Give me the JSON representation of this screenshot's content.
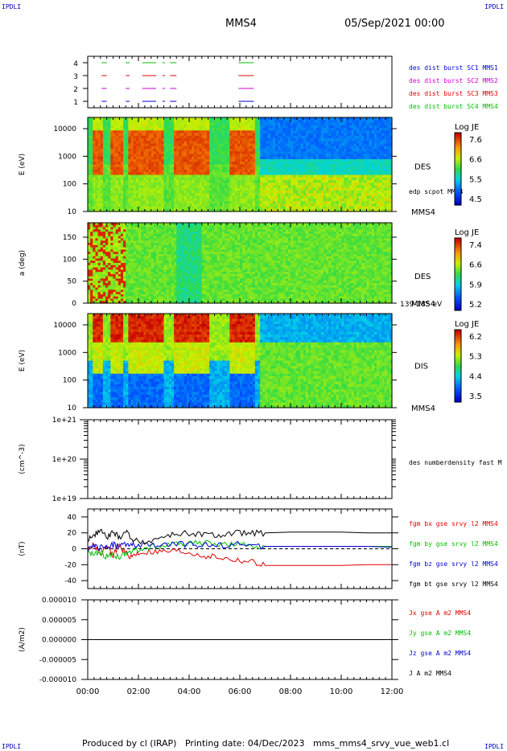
{
  "header": {
    "corner_tl": "IPDLI",
    "corner_tr": "IPDLI",
    "corner_bl": "IPDLI",
    "corner_br": "IPDLI",
    "title": "MMS4",
    "date": "05/Sep/2021 00:00"
  },
  "footer": {
    "text": "Produced by cl (IRAP)   Printing date: 04/Dec/2023   mms_mms4_srvy_vue_web1.cl"
  },
  "colors": {
    "mms1": "#0000d0",
    "mms2": "#d000d0",
    "mms3": "#e00000",
    "mms4": "#00c000",
    "bt": "#000000"
  },
  "chart_data": [
    {
      "type": "scatter",
      "name": "burst-availability",
      "yticks": [
        "4",
        "3",
        "2",
        "1"
      ],
      "legend": [
        {
          "label": "des dist burst SC1 MMS1",
          "color": "#0000d0"
        },
        {
          "label": "des dist burst SC2 MMS2",
          "color": "#d000d0"
        },
        {
          "label": "des dist burst SC3 MMS3",
          "color": "#e00000"
        },
        {
          "label": "des dist burst SC4 MMS4",
          "color": "#00c000"
        }
      ],
      "intervals_hours": [
        [
          0.55,
          0.75
        ],
        [
          1.5,
          1.65
        ],
        [
          2.15,
          2.7
        ],
        [
          2.95,
          3.05
        ],
        [
          3.25,
          3.5
        ],
        [
          5.95,
          6.55
        ]
      ]
    },
    {
      "type": "heatmap",
      "name": "des-energy-spectrogram",
      "ylabel": "E (eV)",
      "yticks": [
        "10000",
        "1000",
        "100",
        "10"
      ],
      "label_right": "DES",
      "annotation": "edp scpot MMS4",
      "unit_right": "MMS4",
      "colorbar": {
        "title": "Log JE",
        "ticks": [
          "7.6",
          "6.6",
          "5.5",
          "4.5"
        ]
      }
    },
    {
      "type": "heatmap",
      "name": "des-pitch-angle",
      "ylabel": "a (deg)",
      "yticks": [
        "150",
        "100",
        "50",
        "0"
      ],
      "label_right": "DES",
      "unit_right": "MMS4",
      "energy_range": "139-185 eV",
      "colorbar": {
        "title": "Log JE",
        "ticks": [
          "7.4",
          "6.6",
          "5.9",
          "5.2"
        ]
      }
    },
    {
      "type": "heatmap",
      "name": "dis-energy-spectrogram",
      "ylabel": "E (eV)",
      "yticks": [
        "10000",
        "1000",
        "100",
        "10"
      ],
      "label_right": "DIS",
      "unit_right": "MMS4",
      "colorbar": {
        "title": "Log JE",
        "ticks": [
          "6.2",
          "5.3",
          "4.4",
          "3.5"
        ]
      }
    },
    {
      "type": "line",
      "name": "number-density",
      "ylabel": "(cm^-3)",
      "yticks": [
        "1e+21",
        "1e+20",
        "1e+19"
      ],
      "series": [
        {
          "name": "des numberdensity fast M",
          "x": [],
          "y": []
        }
      ]
    },
    {
      "type": "line",
      "name": "magnetic-field",
      "ylabel": "(nT)",
      "yticks": [
        "40",
        "20",
        "0",
        "-20",
        "-40"
      ],
      "ylim": [
        -50,
        50
      ],
      "x": [
        0,
        0.25,
        0.5,
        0.75,
        1.0,
        1.25,
        1.5,
        1.75,
        2.0,
        2.5,
        3.0,
        3.5,
        4.0,
        4.5,
        5.0,
        5.5,
        6.0,
        6.5,
        7.0,
        8.0,
        9.0,
        10.0,
        11.0,
        12.0
      ],
      "series": [
        {
          "name": "fgm bx gse srvy l2 MMS4",
          "color": "#e00000",
          "y": [
            0,
            5,
            -5,
            2,
            -8,
            4,
            -6,
            -10,
            -5,
            -4,
            -4,
            -3,
            -5,
            -8,
            -10,
            -13,
            -15,
            -17,
            -21,
            -21,
            -21,
            -21,
            -20,
            -20
          ]
        },
        {
          "name": "fgm by gse srvy l2 MMS4",
          "color": "#00c000",
          "y": [
            -3,
            -8,
            -5,
            -10,
            -8,
            -10,
            -6,
            -4,
            0,
            2,
            4,
            6,
            8,
            7,
            6,
            5,
            4,
            4,
            3,
            3,
            3,
            3,
            3,
            3
          ]
        },
        {
          "name": "fgm bz gse srvy l2 MMS4",
          "color": "#0000d0",
          "y": [
            0,
            2,
            1,
            3,
            5,
            3,
            6,
            4,
            3,
            5,
            4,
            6,
            5,
            5,
            4,
            5,
            6,
            4,
            3,
            3,
            3,
            3,
            3,
            2
          ]
        },
        {
          "name": "fgm bt gse srvy l2 MMS4",
          "color": "#000000",
          "y": [
            12,
            18,
            22,
            15,
            20,
            14,
            22,
            12,
            8,
            10,
            15,
            18,
            20,
            18,
            16,
            18,
            20,
            19,
            20,
            21,
            21,
            21,
            20,
            20
          ]
        }
      ]
    },
    {
      "type": "line",
      "name": "current-density",
      "ylabel": "(A/m2)",
      "yticks": [
        "0.000010",
        "0.000005",
        "0.000000",
        "-0.000005",
        "-0.000010"
      ],
      "ylim": [
        -1e-05,
        1e-05
      ],
      "series": [
        {
          "name": "Jx gse A m2 MMS4",
          "color": "#e00000",
          "y": [
            0
          ]
        },
        {
          "name": "Jy gse A m2 MMS4",
          "color": "#00c000",
          "y": [
            0
          ]
        },
        {
          "name": "Jz gse A m2 MMS4",
          "color": "#0000d0",
          "y": [
            0
          ]
        },
        {
          "name": "J A m2 MMS4",
          "color": "#000000",
          "y": [
            0
          ]
        }
      ]
    }
  ],
  "xaxis": {
    "ticks": [
      "00:00",
      "02:00",
      "04:00",
      "06:00",
      "08:00",
      "10:00",
      "12:00"
    ]
  }
}
